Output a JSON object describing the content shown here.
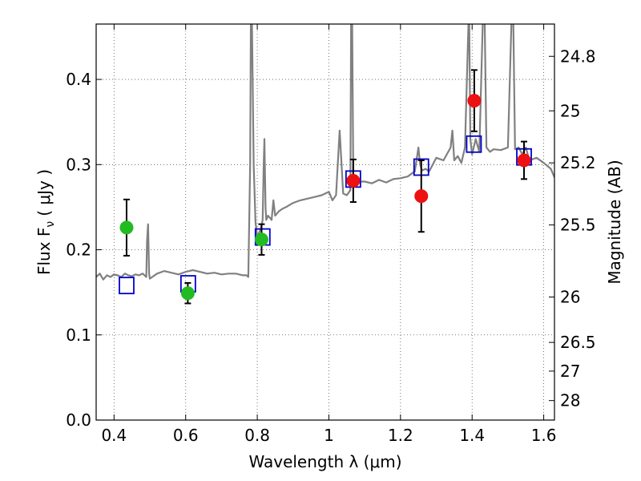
{
  "chart_data": {
    "type": "scatter",
    "xlabel": "Wavelength  λ (μm)",
    "ylabel": "Flux  F",
    "ylabel_sub": "ν",
    "ylabel_unit": "( μJy )",
    "ylabel_right": "Magnitude (AB)",
    "xlim": [
      0.35,
      1.63
    ],
    "ylim": [
      0.0,
      0.465
    ],
    "grid": true,
    "x_ticks": [
      {
        "value": 0.4,
        "label": "0.4"
      },
      {
        "value": 0.6,
        "label": "0.6"
      },
      {
        "value": 0.8,
        "label": "0.8"
      },
      {
        "value": 1.0,
        "label": "1"
      },
      {
        "value": 1.2,
        "label": "1.2"
      },
      {
        "value": 1.4,
        "label": "1.4"
      },
      {
        "value": 1.6,
        "label": "1.6"
      }
    ],
    "y_ticks": [
      {
        "value": 0.0,
        "label": "0.0"
      },
      {
        "value": 0.1,
        "label": "0.1"
      },
      {
        "value": 0.2,
        "label": "0.2"
      },
      {
        "value": 0.3,
        "label": "0.3"
      },
      {
        "value": 0.4,
        "label": "0.4"
      }
    ],
    "mag_ticks": [
      {
        "flux": 0.4271,
        "label": "24.8"
      },
      {
        "flux": 0.3631,
        "label": "25"
      },
      {
        "flux": 0.302,
        "label": "25.2"
      },
      {
        "flux": 0.2291,
        "label": "25.5"
      },
      {
        "flux": 0.1445,
        "label": "26"
      },
      {
        "flux": 0.0912,
        "label": "26.5"
      },
      {
        "flux": 0.0575,
        "label": "27"
      },
      {
        "flux": 0.0229,
        "label": "28"
      }
    ],
    "series": [
      {
        "kind": "spectrum",
        "color": "#808080",
        "x": [
          0.35,
          0.36,
          0.37,
          0.38,
          0.39,
          0.4,
          0.41,
          0.42,
          0.43,
          0.44,
          0.45,
          0.46,
          0.47,
          0.48,
          0.49,
          0.492,
          0.495,
          0.498,
          0.5,
          0.52,
          0.54,
          0.56,
          0.58,
          0.6,
          0.62,
          0.64,
          0.66,
          0.68,
          0.7,
          0.72,
          0.74,
          0.76,
          0.77,
          0.775,
          0.78,
          0.782,
          0.785,
          0.79,
          0.795,
          0.8,
          0.81,
          0.815,
          0.818,
          0.82,
          0.823,
          0.825,
          0.83,
          0.84,
          0.845,
          0.85,
          0.86,
          0.87,
          0.88,
          0.9,
          0.92,
          0.94,
          0.96,
          0.98,
          1.0,
          1.01,
          1.02,
          1.03,
          1.04,
          1.05,
          1.06,
          1.062,
          1.065,
          1.068,
          1.07,
          1.08,
          1.1,
          1.12,
          1.14,
          1.16,
          1.18,
          1.2,
          1.22,
          1.24,
          1.25,
          1.255,
          1.26,
          1.27,
          1.28,
          1.29,
          1.3,
          1.32,
          1.34,
          1.345,
          1.35,
          1.36,
          1.37,
          1.38,
          1.39,
          1.392,
          1.395,
          1.4,
          1.41,
          1.42,
          1.43,
          1.435,
          1.44,
          1.45,
          1.46,
          1.48,
          1.5,
          1.51,
          1.515,
          1.52,
          1.53,
          1.54,
          1.55,
          1.56,
          1.58,
          1.6,
          1.62,
          1.63
        ],
        "y": [
          0.168,
          0.172,
          0.165,
          0.17,
          0.168,
          0.171,
          0.17,
          0.168,
          0.172,
          0.17,
          0.169,
          0.171,
          0.17,
          0.172,
          0.168,
          0.21,
          0.23,
          0.172,
          0.166,
          0.172,
          0.175,
          0.173,
          0.171,
          0.174,
          0.176,
          0.174,
          0.172,
          0.173,
          0.171,
          0.172,
          0.172,
          0.17,
          0.17,
          0.168,
          0.3,
          0.47,
          0.47,
          0.3,
          0.232,
          0.215,
          0.225,
          0.235,
          0.3,
          0.33,
          0.25,
          0.235,
          0.24,
          0.235,
          0.258,
          0.24,
          0.245,
          0.248,
          0.25,
          0.255,
          0.258,
          0.26,
          0.262,
          0.264,
          0.268,
          0.258,
          0.264,
          0.34,
          0.266,
          0.264,
          0.27,
          0.47,
          0.47,
          0.29,
          0.275,
          0.28,
          0.28,
          0.278,
          0.282,
          0.279,
          0.283,
          0.284,
          0.286,
          0.292,
          0.32,
          0.3,
          0.293,
          0.295,
          0.292,
          0.3,
          0.308,
          0.305,
          0.32,
          0.34,
          0.305,
          0.31,
          0.302,
          0.32,
          0.47,
          0.47,
          0.33,
          0.312,
          0.33,
          0.315,
          0.47,
          0.47,
          0.32,
          0.315,
          0.318,
          0.317,
          0.32,
          0.47,
          0.47,
          0.318,
          0.32,
          0.312,
          0.32,
          0.305,
          0.308,
          0.302,
          0.295,
          0.285
        ]
      },
      {
        "kind": "model_photometry",
        "marker": "square",
        "color": "#0000cc",
        "x": [
          0.435,
          0.607,
          0.815,
          1.068,
          1.258,
          1.405,
          1.545
        ],
        "y": [
          0.158,
          0.16,
          0.215,
          0.283,
          0.297,
          0.324,
          0.309
        ]
      },
      {
        "kind": "observed",
        "marker": "circle",
        "color": "#22bb22",
        "x": [
          0.435,
          0.606,
          0.812
        ],
        "y": [
          0.226,
          0.149,
          0.212
        ],
        "yerr": [
          0.033,
          0.012,
          0.018
        ]
      },
      {
        "kind": "observed",
        "marker": "circle",
        "color": "#ee1111",
        "x": [
          1.068,
          1.258,
          1.406,
          1.545
        ],
        "y": [
          0.281,
          0.263,
          0.375,
          0.305
        ],
        "yerr": [
          0.025,
          0.042,
          0.036,
          0.022
        ]
      }
    ]
  }
}
